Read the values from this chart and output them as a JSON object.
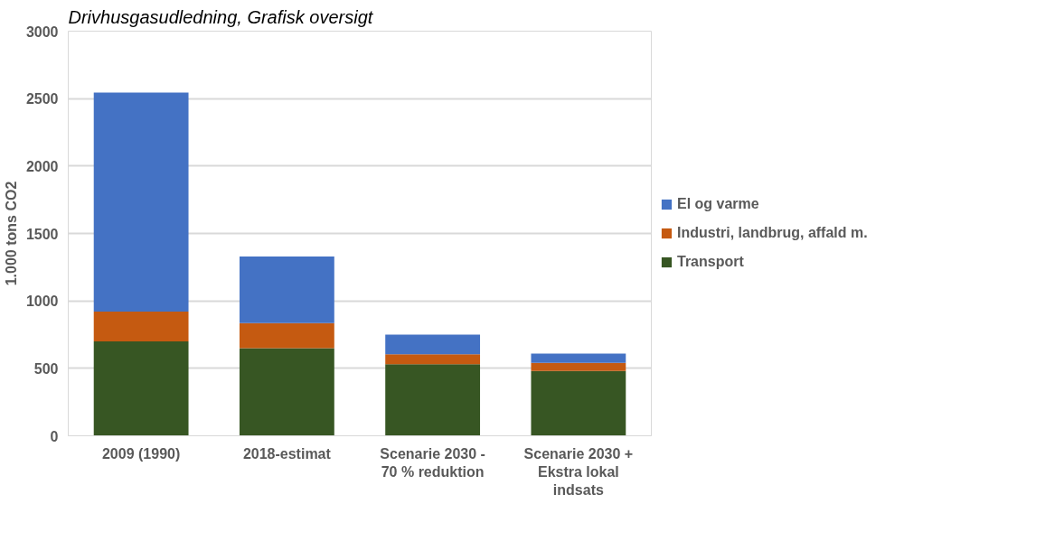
{
  "chart_data": {
    "type": "bar",
    "stacked": true,
    "title": "Drivhusgasudledning, Grafisk oversigt",
    "ylabel": "1.000 tons CO2",
    "categories": [
      "2009 (1990)",
      "2018-estimat",
      "Scenarie 2030 - 70 % reduktion",
      "Scenarie 2030 + Ekstra lokal indsats"
    ],
    "series": [
      {
        "name": "Transport",
        "color": "#375623",
        "values": [
          700,
          650,
          530,
          480
        ]
      },
      {
        "name": "Industri, landbrug, affald m.",
        "color": "#c55a11",
        "values": [
          220,
          185,
          75,
          60
        ]
      },
      {
        "name": "El og varme",
        "color": "#4472c4",
        "values": [
          1625,
          495,
          145,
          70
        ]
      }
    ],
    "ylim": [
      0,
      3000
    ],
    "yticks": [
      0,
      500,
      1000,
      1500,
      2000,
      2500,
      3000
    ],
    "grid": "y",
    "legend": "right"
  }
}
